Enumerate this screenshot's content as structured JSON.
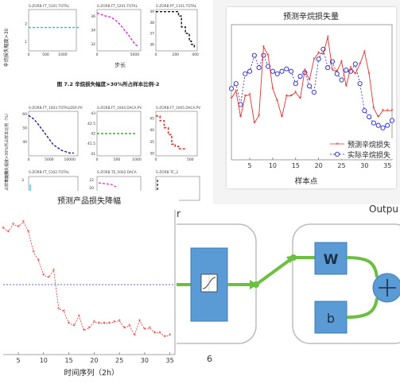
{
  "document": {
    "figure_caption": "图 7.2  辛烷损失幅度>30%所占样本比例-2",
    "top_row_titles": [
      "S-ZORB.FT_5101.TOTAL",
      "S-ZORB.FT_5201.TOTAL",
      "S-ZORB.PT_1101.TOTAL"
    ],
    "mid_row_titles": [
      "S-ZORB.FT_1003.TOTALIZER.PV",
      "S-ZORB.FT_1004.DACA.PV",
      "S-ZORB.FT_1005.DACA.PV"
    ],
    "bottom_row_titles": [
      "S-ZORB.FT_5102.TOTAL",
      "S-ZORB.TE_5002.DACA",
      "S-ZORB.TC_2"
    ],
    "top_ylabel": "辛烷损失幅度>30",
    "top_xlabel": "步长",
    "mid_ylabel": "辛烷损失幅度>30%所占样本比例（%）",
    "bottom_ylabel": "度>30%所占样本比例",
    "small_charts": [
      {
        "type": "line",
        "color": "#19c8c8",
        "dash": "dash",
        "x": [
          0,
          1500
        ],
        "values": [
          1.8,
          1.8
        ],
        "yticks": [
          "1",
          "2"
        ],
        "xticks": [
          "0",
          "500",
          "1000"
        ],
        "ylim": [
          0.5,
          2.8
        ],
        "xlim": [
          0,
          1400
        ]
      },
      {
        "type": "line",
        "color": "#d62ad6",
        "dash": "dash",
        "x": [
          0,
          500,
          1000,
          1500,
          2000,
          2500,
          3000,
          3500,
          4000,
          4500,
          5000,
          5500
        ],
        "values": [
          36.5,
          36.3,
          36.1,
          36.0,
          35.8,
          35.4,
          34.9,
          34.2,
          33.6,
          32.8,
          32.0,
          31.6
        ],
        "yticks": [
          "32",
          "34",
          "36"
        ],
        "xticks": [
          "0",
          "5000"
        ],
        "ylim": [
          31,
          37
        ],
        "xlim": [
          0,
          5800
        ]
      },
      {
        "type": "step",
        "color": "#111111",
        "dash": "dash",
        "x": [
          0,
          60,
          110,
          180,
          230,
          260,
          300,
          340,
          360,
          390
        ],
        "values": [
          39.0,
          39.0,
          39.0,
          39.0,
          38.6,
          37.6,
          37.0,
          36.3,
          36.0,
          35.6
        ],
        "yticks": [
          "36",
          "37",
          "38",
          "39"
        ],
        "xticks": [
          "0",
          "200",
          "400"
        ],
        "ylim": [
          35.4,
          39.2
        ],
        "xlim": [
          0,
          420
        ]
      },
      {
        "type": "line",
        "color": "#1a1a9c",
        "dash": "dash",
        "x": [
          0,
          1000,
          2000,
          3000,
          4000,
          5000,
          6000,
          7000,
          8000,
          9000,
          10000,
          11000
        ],
        "values": [
          59,
          57,
          54,
          50,
          46,
          42,
          38,
          36,
          34,
          33,
          32,
          32
        ],
        "yticks": [
          "40",
          "50",
          "60"
        ],
        "xticks": [
          "0",
          "5000",
          "10000"
        ],
        "ylim": [
          30,
          62
        ],
        "xlim": [
          0,
          12000
        ]
      },
      {
        "type": "line",
        "color": "#22bb22",
        "dash": "dash",
        "x": [
          0,
          1000
        ],
        "values": [
          42.0,
          42.0
        ],
        "yticks": [
          "41",
          "41.5",
          "42",
          "42.5",
          "43"
        ],
        "xticks": [
          "0",
          "500",
          "1000"
        ],
        "ylim": [
          40.9,
          43.1
        ],
        "xlim": [
          0,
          1100
        ]
      },
      {
        "type": "step",
        "color": "#e21a1a",
        "dash": "dash",
        "x": [
          0,
          60,
          120,
          180,
          230,
          280,
          330,
          380,
          430
        ],
        "values": [
          46,
          44,
          41,
          38,
          34,
          33,
          32,
          32,
          32
        ],
        "yticks": [
          "30",
          "35",
          "40",
          "45"
        ],
        "xticks": [
          "0",
          "500"
        ],
        "ylim": [
          29,
          48
        ],
        "xlim": [
          0,
          600
        ]
      }
    ],
    "tiny_partials": {
      "left_tick": "3",
      "mid_ticks": [
        "22",
        "20"
      ]
    }
  },
  "loss_chart": {
    "title": "预测辛烷损失量",
    "xlabel": "样本点",
    "xticks": [
      "5",
      "10",
      "15",
      "20",
      "25",
      "30",
      "35"
    ],
    "legend": [
      "预测辛烷损失",
      "实际辛烷损失"
    ],
    "colors": {
      "predicted": "#e03030",
      "actual": "#2222cc"
    }
  },
  "chart_data": [
    {
      "type": "line",
      "title": "预测辛烷损失量",
      "xlabel": "样本点",
      "ylabel": "",
      "xlim": [
        1,
        36
      ],
      "ylim": [
        0.7,
        1.8
      ],
      "grid": false,
      "legend_position": "bottom-right",
      "series": [
        {
          "name": "预测辛烷损失",
          "x": [
            1,
            2,
            3,
            4,
            5,
            6,
            7,
            8,
            9,
            10,
            11,
            12,
            13,
            14,
            15,
            16,
            17,
            18,
            19,
            20,
            21,
            22,
            23,
            24,
            25,
            26,
            27,
            28,
            29,
            30,
            31,
            32,
            33,
            34,
            35,
            36
          ],
          "values": [
            1.2,
            1.26,
            1.05,
            1.22,
            1.23,
            1.0,
            1.06,
            1.62,
            1.55,
            1.28,
            1.18,
            1.05,
            1.22,
            1.22,
            1.25,
            1.2,
            1.43,
            1.35,
            1.52,
            1.57,
            1.56,
            1.7,
            1.43,
            1.42,
            1.5,
            1.3,
            1.45,
            1.4,
            1.48,
            1.58,
            1.4,
            1.12,
            1.05,
            1.1,
            1.1,
            1.1
          ]
        },
        {
          "name": "实际辛烷损失",
          "x": [
            1,
            2,
            3,
            4,
            5,
            6,
            7,
            8,
            9,
            10,
            11,
            12,
            13,
            14,
            15,
            16,
            17,
            18,
            19,
            20,
            21,
            22,
            23,
            24,
            25,
            26,
            27,
            28,
            29,
            30,
            31,
            32,
            33,
            34,
            35,
            36
          ],
          "values": [
            1.28,
            1.32,
            1.15,
            1.4,
            1.42,
            1.55,
            1.45,
            1.55,
            1.46,
            1.42,
            1.4,
            1.42,
            1.44,
            1.42,
            1.32,
            1.38,
            1.41,
            1.3,
            1.25,
            1.52,
            1.6,
            1.45,
            1.5,
            1.4,
            1.35,
            1.43,
            1.42,
            1.48,
            1.32,
            1.1,
            1.05,
            1.0,
            0.98,
            0.96,
            0.98,
            1.02
          ]
        }
      ]
    },
    {
      "type": "line",
      "title": "预测产品损失降幅",
      "xlabel": "时间序列（2h）",
      "ylabel": "",
      "xlim": [
        2,
        36
      ],
      "ylim": [
        0,
        1.2
      ],
      "grid": false,
      "reference_line": 0.58,
      "series": [
        {
          "name": "",
          "x": [
            2,
            3,
            4,
            5,
            6,
            7,
            8,
            9,
            10,
            11,
            12,
            13,
            14,
            15,
            16,
            17,
            18,
            19,
            20,
            21,
            22,
            23,
            24,
            25,
            26,
            27,
            28,
            29,
            30,
            31,
            32,
            33,
            34,
            35
          ],
          "values": [
            1.05,
            1.02,
            1.08,
            1.06,
            1.1,
            1.02,
            0.85,
            0.78,
            0.66,
            0.64,
            0.7,
            0.38,
            0.36,
            0.26,
            0.24,
            0.32,
            0.2,
            0.22,
            0.27,
            0.26,
            0.26,
            0.26,
            0.27,
            0.28,
            0.22,
            0.24,
            0.16,
            0.28,
            0.21,
            0.22,
            0.18,
            0.18,
            0.15,
            0.16
          ]
        }
      ]
    }
  ],
  "lower_chart": {
    "title": "预测产品损失降幅",
    "xlabel": "时间序列（2h）",
    "xticks": [
      "5",
      "10",
      "15",
      "20",
      "25",
      "30",
      "35"
    ]
  },
  "diagram": {
    "left_label": "r",
    "output_label": "Outpu",
    "weight_label": "W",
    "bias_label": "b",
    "bottom_label": "6"
  }
}
